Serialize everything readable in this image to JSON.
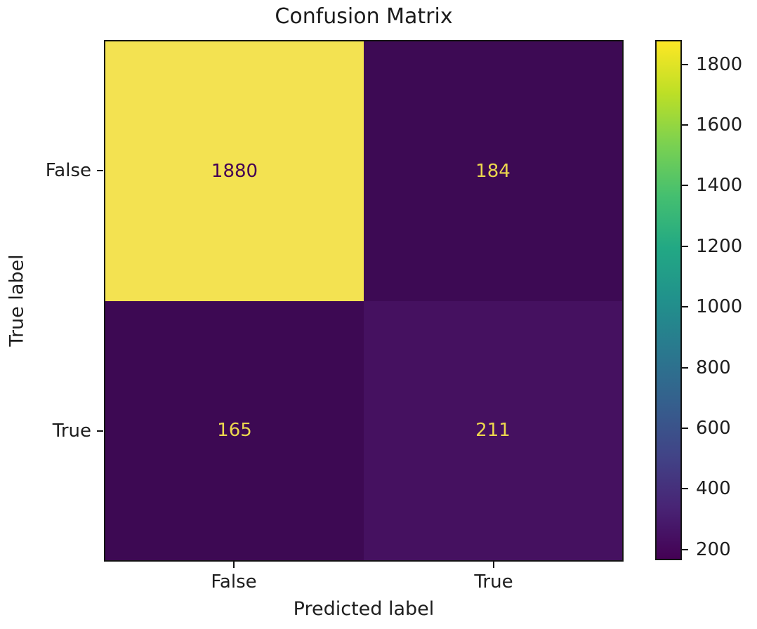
{
  "chart_data": {
    "type": "heatmap",
    "title": "Confusion Matrix",
    "xlabel": "Predicted label",
    "ylabel": "True label",
    "x_tick_labels": [
      "False",
      "True"
    ],
    "y_tick_labels": [
      "False",
      "True"
    ],
    "matrix": [
      [
        1880,
        184
      ],
      [
        165,
        211
      ]
    ],
    "vmin": 165,
    "vmax": 1880,
    "colormap": "viridis",
    "colorbar_ticks": [
      200,
      400,
      600,
      800,
      1000,
      1200,
      1400,
      1600,
      1800
    ],
    "colorbar_position": "right",
    "grid": false,
    "cell_colors": [
      [
        "#f3e251",
        "#3d0a54"
      ],
      [
        "#3d0953",
        "#451160"
      ]
    ],
    "cell_text_colors": [
      [
        "#440154",
        "#ecd74e"
      ],
      [
        "#ecd74e",
        "#ecd74e"
      ]
    ],
    "viridis_stops": [
      "#440154",
      "#482475",
      "#414487",
      "#355f8d",
      "#2a788e",
      "#21918c",
      "#22a884",
      "#44bf70",
      "#7ad151",
      "#bddf26",
      "#fde725"
    ],
    "spine_color": "#141414",
    "background_color": "#ffffff"
  }
}
